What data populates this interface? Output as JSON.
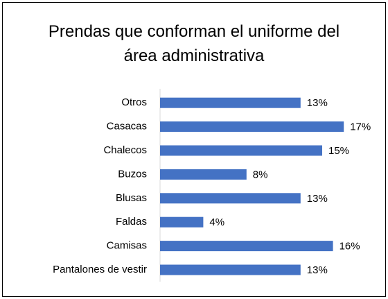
{
  "chart_data": {
    "type": "bar",
    "orientation": "horizontal",
    "title": "Prendas que conforman el uniforme del área administrativa",
    "categories": [
      "Otros",
      "Casacas",
      "Chalecos",
      "Buzos",
      "Blusas",
      "Faldas",
      "Camisas",
      "Pantalones de vestir"
    ],
    "values": [
      13,
      17,
      15,
      8,
      13,
      4,
      16,
      13
    ],
    "value_labels": [
      "13%",
      "17%",
      "15%",
      "8%",
      "13%",
      "4%",
      "16%",
      "13%"
    ],
    "color": "#4472c4"
  }
}
